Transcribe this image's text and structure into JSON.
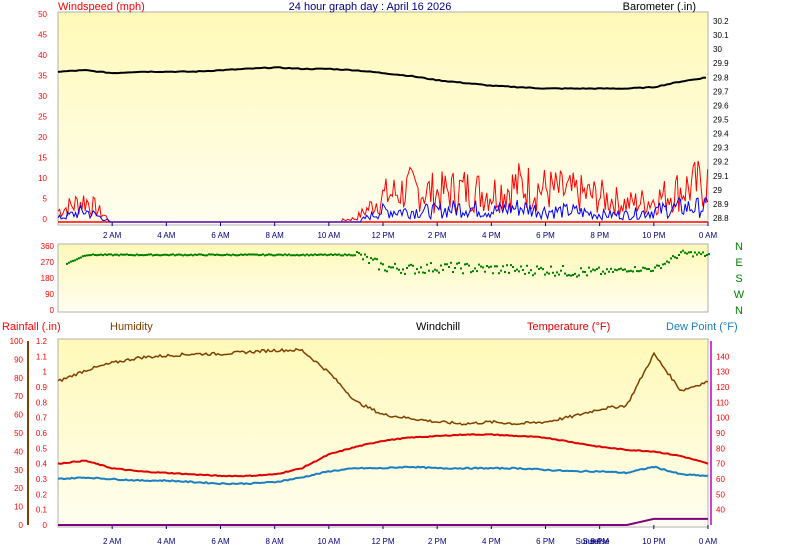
{
  "title": "24 hour graph day : April 16 2026",
  "colors": {
    "wind_gust": "#ff0000",
    "wind_avg": "#0000ff",
    "barometer": "#000000",
    "direction": "#008000",
    "rain": "#800080",
    "humidity": "#804000",
    "windchill": "#000000",
    "temperature": "#dd0000",
    "dewpoint": "#1a7fc0",
    "axis_text": "#ff0000",
    "time_text": "#000080"
  },
  "time_labels": [
    "2 AM",
    "4 AM",
    "6 AM",
    "8 AM",
    "10 AM",
    "12 PM",
    "2 PM",
    "4 PM",
    "6 PM",
    "8 PM",
    "10 PM",
    "0 AM"
  ],
  "sun_labels": [
    "Sunset",
    "Sunrise"
  ],
  "chart_data": [
    {
      "type": "line",
      "name": "wind-barometer",
      "title": "24 hour graph day : April 16 2026",
      "ylabel_left": "Windspeed (mph)",
      "ylabel_right": "Barometer (.in)",
      "ylim_left": [
        0,
        50
      ],
      "yticks_left": [
        "0",
        "5",
        "10",
        "15",
        "20",
        "25",
        "30",
        "35",
        "40",
        "45",
        "50"
      ],
      "ylim_right": [
        28.7,
        30.3
      ],
      "yticks_right": [
        "28.8",
        "28.9",
        "29",
        "29.1",
        "29.2",
        "29.3",
        "29.4",
        "29.5",
        "29.6",
        "29.7",
        "29.8",
        "29.9",
        "30",
        "30.1",
        "30.2"
      ],
      "x_hours": [
        0,
        1,
        2,
        3,
        4,
        5,
        6,
        7,
        8,
        9,
        10,
        11,
        12,
        13,
        14,
        15,
        16,
        17,
        18,
        19,
        20,
        21,
        22,
        23,
        24
      ],
      "series": [
        {
          "name": "Barometer",
          "axis": "right",
          "values": [
            29.84,
            29.85,
            29.83,
            29.84,
            29.84,
            29.84,
            29.85,
            29.86,
            29.87,
            29.86,
            29.86,
            29.85,
            29.83,
            29.81,
            29.78,
            29.76,
            29.74,
            29.73,
            29.72,
            29.72,
            29.72,
            29.72,
            29.73,
            29.77,
            29.8
          ]
        },
        {
          "name": "Wind gust",
          "axis": "left",
          "values": [
            3,
            6,
            0,
            0,
            0,
            0,
            0,
            0,
            0,
            0,
            0,
            1,
            7,
            9,
            8,
            9,
            8,
            10,
            9,
            8,
            7,
            5,
            6,
            9,
            11
          ]
        },
        {
          "name": "Wind average",
          "axis": "left",
          "values": [
            1,
            3,
            0,
            0,
            0,
            0,
            0,
            0,
            0,
            0,
            0,
            0,
            3,
            3,
            3,
            4,
            3,
            4,
            3,
            3,
            2,
            2,
            3,
            4,
            4
          ]
        }
      ]
    },
    {
      "type": "scatter",
      "name": "wind-direction",
      "ylim": [
        0,
        360
      ],
      "yticks": [
        "0",
        "90",
        "180",
        "270",
        "360"
      ],
      "compass_labels": [
        "N",
        "W",
        "S",
        "E",
        "N"
      ],
      "x_hours": [
        0,
        1,
        2,
        3,
        4,
        5,
        6,
        7,
        8,
        9,
        10,
        11,
        12,
        13,
        14,
        15,
        16,
        17,
        18,
        19,
        20,
        21,
        22,
        23,
        24
      ],
      "values": [
        240,
        310,
        310,
        310,
        310,
        310,
        310,
        310,
        310,
        310,
        310,
        310,
        240,
        230,
        240,
        235,
        230,
        225,
        225,
        215,
        210,
        230,
        230,
        320,
        310
      ]
    },
    {
      "type": "line",
      "name": "temperature-humidity",
      "ylabels": [
        "Rainfall (.in)",
        "Humidity",
        "Windchill",
        "Temperature (°F)",
        "Dew Point (°F)"
      ],
      "ylim_humidity": [
        0,
        100
      ],
      "yticks_humidity": [
        "0",
        "10",
        "20",
        "30",
        "40",
        "50",
        "60",
        "70",
        "80",
        "90",
        "100"
      ],
      "ylim_rain": [
        0,
        1.2
      ],
      "yticks_rain": [
        "0",
        "0.1",
        "0.2",
        "0.3",
        "0.4",
        "0.5",
        "0.6",
        "0.7",
        "0.8",
        "0.9",
        "1",
        "1.1",
        "1.2"
      ],
      "ylim_temp": [
        30,
        150
      ],
      "yticks_temp": [
        "40",
        "50",
        "60",
        "70",
        "80",
        "90",
        "100",
        "110",
        "120",
        "130",
        "140"
      ],
      "x_hours": [
        0,
        1,
        2,
        3,
        4,
        5,
        6,
        7,
        8,
        9,
        10,
        11,
        12,
        13,
        14,
        15,
        16,
        17,
        18,
        19,
        20,
        21,
        22,
        23,
        24
      ],
      "series": [
        {
          "name": "Humidity",
          "values": [
            78,
            84,
            88,
            91,
            92,
            93,
            93,
            94,
            95,
            95,
            83,
            67,
            60,
            58,
            56,
            55,
            56,
            55,
            56,
            59,
            63,
            65,
            93,
            73,
            78
          ]
        },
        {
          "name": "Temperature",
          "values": [
            70,
            72,
            67,
            65,
            64,
            63,
            62,
            62,
            63,
            67,
            76,
            81,
            85,
            87,
            88,
            89,
            89,
            88,
            87,
            84,
            81,
            79,
            78,
            75,
            70
          ]
        },
        {
          "name": "Dew Point",
          "values": [
            60,
            61,
            60,
            59,
            59,
            58,
            57,
            57,
            58,
            61,
            65,
            67,
            67,
            68,
            67,
            67,
            67,
            67,
            66,
            65,
            65,
            64,
            68,
            63,
            62
          ]
        },
        {
          "name": "Rainfall",
          "values": [
            0,
            0,
            0,
            0,
            0,
            0,
            0,
            0,
            0,
            0,
            0,
            0,
            0,
            0,
            0,
            0,
            0,
            0,
            0,
            0,
            0,
            0,
            0.04,
            0.04,
            0.04
          ]
        }
      ]
    }
  ]
}
